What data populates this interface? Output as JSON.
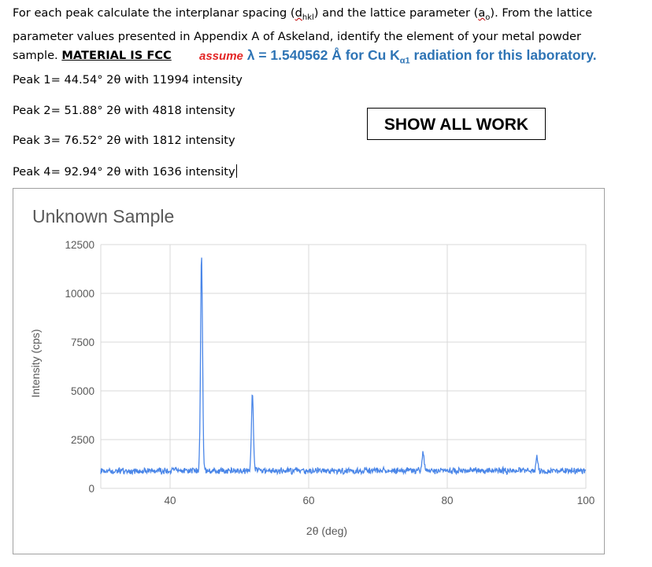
{
  "intro": {
    "l1_a": "For each peak calculate the interplanar spacing (",
    "d": "d",
    "hkl": "hkl",
    "l1_b": ") and the lattice parameter (",
    "a": "a",
    "o": "o",
    "l1_c": "). From the lattice",
    "l2": "parameter values presented in Appendix A of Askeland, identify the element of your metal powder",
    "l3": "sample. ",
    "material": "MATERIAL IS FCC"
  },
  "assume": {
    "word": "assume",
    "lambda": "λ = 1.540562 Å for Cu K",
    "sub": "α1",
    "rest": " radiation for this laboratory."
  },
  "peaks": [
    "Peak 1= 44.54° 2θ with 11994 intensity",
    "Peak 2= 51.88° 2θ with 4818 intensity",
    "Peak 3= 76.52° 2θ with 1812 intensity",
    "Peak 4= 92.94° 2θ with 1636 intensity"
  ],
  "show_all_work": "SHOW ALL WORK",
  "chart_data": {
    "type": "line",
    "title": "Unknown Sample",
    "xlabel": "2θ (deg)",
    "ylabel": "Intensity (cps)",
    "xlim": [
      30,
      100
    ],
    "ylim": [
      0,
      12500
    ],
    "x_ticks": [
      40,
      60,
      80,
      100
    ],
    "y_ticks": [
      0,
      2500,
      5000,
      7500,
      10000,
      12500
    ],
    "grid": true,
    "legend": "none",
    "color": "#4a86e8",
    "baseline": 900,
    "peaks": [
      {
        "x": 44.54,
        "y": 11994
      },
      {
        "x": 51.88,
        "y": 4818
      },
      {
        "x": 76.52,
        "y": 1812
      },
      {
        "x": 92.94,
        "y": 1636
      }
    ]
  }
}
